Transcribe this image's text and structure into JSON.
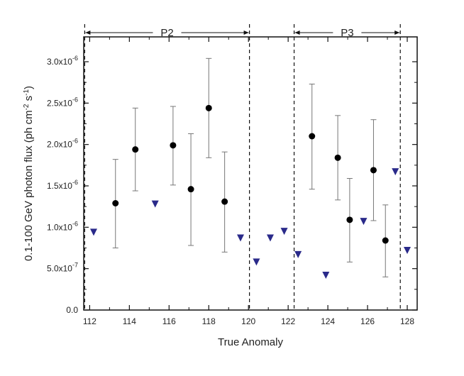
{
  "chart_data": {
    "type": "scatter",
    "xlabel": "True Anomaly",
    "ylabel": "0.1-100 GeV photon flux (ph cm^-2 s^-1)",
    "xlim": [
      111.7,
      128.5
    ],
    "ylim": [
      0.0,
      3.3e-06
    ],
    "x_ticks": [
      112,
      114,
      116,
      118,
      120,
      122,
      124,
      126,
      128
    ],
    "y_ticks": [
      {
        "value": 0.0,
        "mantissa": "0.0",
        "exp": ""
      },
      {
        "value": 5e-07,
        "mantissa": "5.0x10",
        "exp": "-7"
      },
      {
        "value": 1e-06,
        "mantissa": "1.0x10",
        "exp": "-6"
      },
      {
        "value": 1.5e-06,
        "mantissa": "1.5x10",
        "exp": "-6"
      },
      {
        "value": 2e-06,
        "mantissa": "2.0x10",
        "exp": "-6"
      },
      {
        "value": 2.5e-06,
        "mantissa": "2.5x10",
        "exp": "-6"
      },
      {
        "value": 3e-06,
        "mantissa": "3.0x10",
        "exp": "-6"
      }
    ],
    "series": [
      {
        "marker": "circle",
        "color": "#000000",
        "points": [
          {
            "x": 113.3,
            "y": 1.29e-06,
            "lo": 7.5e-07,
            "hi": 1.82e-06
          },
          {
            "x": 114.3,
            "y": 1.94e-06,
            "lo": 1.44e-06,
            "hi": 2.44e-06
          },
          {
            "x": 116.2,
            "y": 1.99e-06,
            "lo": 1.51e-06,
            "hi": 2.46e-06
          },
          {
            "x": 117.1,
            "y": 1.46e-06,
            "lo": 7.8e-07,
            "hi": 2.13e-06
          },
          {
            "x": 118.0,
            "y": 2.44e-06,
            "lo": 1.84e-06,
            "hi": 3.04e-06
          },
          {
            "x": 118.8,
            "y": 1.31e-06,
            "lo": 7e-07,
            "hi": 1.91e-06
          },
          {
            "x": 123.2,
            "y": 2.1e-06,
            "lo": 1.46e-06,
            "hi": 2.73e-06
          },
          {
            "x": 124.5,
            "y": 1.84e-06,
            "lo": 1.33e-06,
            "hi": 2.35e-06
          },
          {
            "x": 125.1,
            "y": 1.09e-06,
            "lo": 5.8e-07,
            "hi": 1.59e-06
          },
          {
            "x": 126.3,
            "y": 1.69e-06,
            "lo": 1.08e-06,
            "hi": 2.3e-06
          },
          {
            "x": 126.9,
            "y": 8.4e-07,
            "lo": 4e-07,
            "hi": 1.27e-06
          }
        ]
      },
      {
        "marker": "triangle-down",
        "color": "#2a2a8a",
        "points": [
          {
            "x": 112.2,
            "y": 9.4e-07
          },
          {
            "x": 115.3,
            "y": 1.28e-06
          },
          {
            "x": 119.6,
            "y": 8.7e-07
          },
          {
            "x": 120.4,
            "y": 5.8e-07
          },
          {
            "x": 121.1,
            "y": 8.7e-07
          },
          {
            "x": 121.8,
            "y": 9.5e-07
          },
          {
            "x": 122.5,
            "y": 6.7e-07
          },
          {
            "x": 123.9,
            "y": 4.2e-07
          },
          {
            "x": 125.8,
            "y": 1.07e-06
          },
          {
            "x": 127.4,
            "y": 1.67e-06
          },
          {
            "x": 128.0,
            "y": 7.2e-07
          }
        ]
      }
    ],
    "vertical_lines": [
      111.75,
      120.05,
      122.3,
      127.65
    ],
    "periods": [
      {
        "label": "P2",
        "from": 111.75,
        "to": 120.05
      },
      {
        "label": "P3",
        "from": 122.3,
        "to": 127.65
      }
    ]
  }
}
